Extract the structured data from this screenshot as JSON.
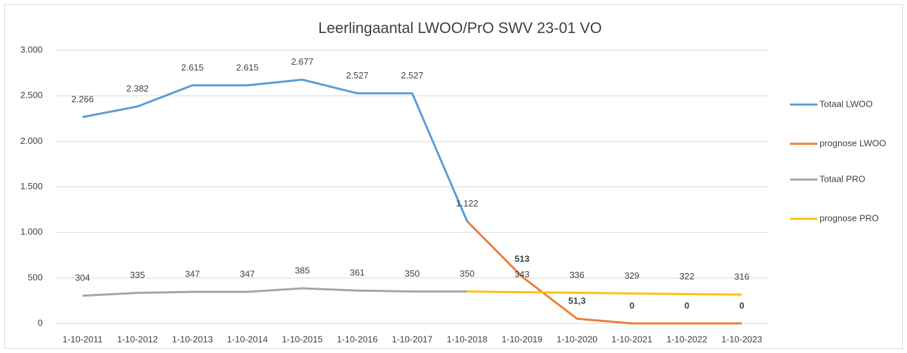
{
  "chart_data": {
    "type": "line",
    "title": "Leerlingaantal LWOO/PrO SWV 23-01 VO",
    "categories": [
      "1-10-2011",
      "1-10-2012",
      "1-10-2013",
      "1-10-2014",
      "1-10-2015",
      "1-10-2016",
      "1-10-2017",
      "1-10-2018",
      "1-10-2019",
      "1-10-2020",
      "1-10-2021",
      "1-10-2022",
      "1-10-2023"
    ],
    "series": [
      {
        "name": "Totaal LWOO",
        "color": "#5b9bd5",
        "values": [
          2266,
          2382,
          2615,
          2615,
          2677,
          2527,
          2527,
          1122,
          null,
          null,
          null,
          null,
          null
        ],
        "value_labels": [
          "2.266",
          "2.382",
          "2.615",
          "2.615",
          "2.677",
          "2.527",
          "2.527",
          "1.122",
          null,
          null,
          null,
          null,
          null
        ]
      },
      {
        "name": "prognose LWOO",
        "color": "#ed7d31",
        "values": [
          null,
          null,
          null,
          null,
          null,
          null,
          null,
          1122,
          513,
          51.3,
          0,
          0,
          0
        ],
        "value_labels": [
          null,
          null,
          null,
          null,
          null,
          null,
          null,
          null,
          "513",
          "51,3",
          "0",
          "0",
          "0"
        ]
      },
      {
        "name": "Totaal PRO",
        "color": "#a5a5a5",
        "values": [
          304,
          335,
          347,
          347,
          385,
          361,
          350,
          350,
          null,
          null,
          null,
          null,
          null
        ],
        "value_labels": [
          "304",
          "335",
          "347",
          "347",
          "385",
          "361",
          "350",
          "350",
          null,
          null,
          null,
          null,
          null
        ]
      },
      {
        "name": "prognose PRO",
        "color": "#ffc000",
        "values": [
          null,
          null,
          null,
          null,
          null,
          null,
          null,
          350,
          343,
          336,
          329,
          322,
          316
        ],
        "value_labels": [
          null,
          null,
          null,
          null,
          null,
          null,
          null,
          null,
          "343",
          "336",
          "329",
          "322",
          "316"
        ]
      }
    ],
    "ylim": [
      0,
      3000
    ],
    "yticks": [
      0,
      500,
      {
        "value": 1000,
        "label": "1.000"
      },
      {
        "value": 1500,
        "label": "1.500"
      },
      {
        "value": 2000,
        "label": "2.000"
      },
      {
        "value": 2500,
        "label": "2.500"
      },
      {
        "value": 3000,
        "label": "3.000"
      }
    ],
    "grid": true,
    "legend": "right"
  }
}
